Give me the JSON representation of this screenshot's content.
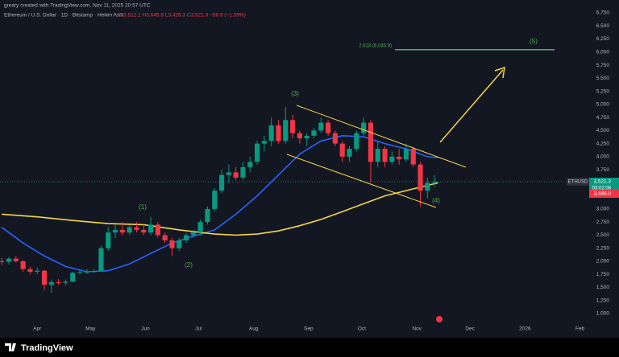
{
  "header": {
    "credit": "greary created with TradingView.com, Nov 11, 2025 20:57 UTC",
    "symbol_line": "Ethereum / U.S. Dollar · 1D · Bitstamp · Heikin Ashi",
    "ohlc_line": "O3,512.1 H3,646.8 L3,426.3 C3,521.3 −66.9 (−1.59%)"
  },
  "chart_data": {
    "type": "candlestick",
    "x": [
      -20,
      -16,
      -12,
      -8,
      -4,
      0,
      4,
      8,
      12,
      16,
      20,
      24,
      28,
      32,
      36,
      40,
      44,
      48,
      52,
      56,
      60,
      64,
      68,
      72,
      76,
      80,
      84,
      88,
      92,
      96,
      100,
      104,
      108,
      112,
      116,
      120,
      124,
      128,
      132,
      136,
      140,
      144,
      148,
      152,
      156,
      160,
      164,
      168,
      172,
      176,
      180,
      184,
      188,
      192,
      196,
      200,
      204,
      208,
      212,
      216,
      220,
      224
    ],
    "open": [
      2000,
      1990,
      2050,
      2000,
      1850,
      1800,
      1820,
      1550,
      1600,
      1590,
      1610,
      1780,
      1790,
      1800,
      1810,
      2250,
      2550,
      2600,
      2550,
      2650,
      2600,
      2550,
      2700,
      2500,
      2400,
      2250,
      2400,
      2500,
      2550,
      2750,
      3000,
      3350,
      3650,
      3700,
      3600,
      3800,
      3900,
      4250,
      4300,
      4600,
      4300,
      4700,
      4450,
      4350,
      4400,
      4500,
      4650,
      4450,
      4250,
      4000,
      4150,
      4450,
      4650,
      3900,
      4150,
      3900,
      4000,
      3950,
      4150,
      3850,
      3350,
      3512.1
    ],
    "high": [
      2060,
      2080,
      2100,
      2020,
      1900,
      1880,
      1830,
      1650,
      1660,
      1650,
      1800,
      1850,
      1850,
      1850,
      2300,
      2650,
      2700,
      2750,
      2700,
      2750,
      2700,
      2850,
      2750,
      2550,
      2450,
      2450,
      2550,
      2600,
      2800,
      3050,
      3400,
      3750,
      3850,
      3800,
      3900,
      4000,
      4300,
      4400,
      4750,
      4700,
      4950,
      4800,
      4500,
      4450,
      4550,
      4750,
      4700,
      4500,
      4300,
      4200,
      4500,
      4750,
      4700,
      4300,
      4200,
      4100,
      4150,
      4250,
      4200,
      3900,
      3600,
      3646.8
    ],
    "low": [
      1930,
      1940,
      1980,
      1800,
      1750,
      1750,
      1450,
      1400,
      1550,
      1540,
      1600,
      1750,
      1760,
      1780,
      1800,
      2200,
      2450,
      2500,
      2500,
      2550,
      2500,
      2500,
      2450,
      2350,
      2100,
      2200,
      2350,
      2450,
      2500,
      2700,
      2950,
      3300,
      3500,
      3550,
      3550,
      3700,
      3850,
      4100,
      4200,
      4250,
      4250,
      4350,
      4250,
      4200,
      4350,
      4450,
      4400,
      4200,
      3900,
      3900,
      4100,
      4400,
      3500,
      3800,
      3800,
      3850,
      3850,
      3900,
      3800,
      3050,
      3200,
      3426.3
    ],
    "close": [
      1990,
      2050,
      2000,
      1850,
      1800,
      1820,
      1550,
      1600,
      1590,
      1610,
      1780,
      1790,
      1800,
      1810,
      2250,
      2550,
      2600,
      2550,
      2650,
      2600,
      2550,
      2700,
      2500,
      2400,
      2250,
      2400,
      2500,
      2550,
      2750,
      3000,
      3350,
      3650,
      3700,
      3600,
      3800,
      3900,
      4250,
      4300,
      4600,
      4300,
      4700,
      4450,
      4350,
      4400,
      4500,
      4650,
      4450,
      4250,
      4000,
      4150,
      4450,
      4650,
      3900,
      4150,
      3900,
      4000,
      3950,
      4150,
      3850,
      3350,
      3500,
      3521.3
    ],
    "up_color": "#089981",
    "down_color": "#f23645",
    "lines": [
      {
        "x": [
          -20,
          -8,
          4,
          16,
          28,
          40,
          52,
          64,
          76,
          88,
          100,
          112,
          124,
          136,
          148,
          160,
          172,
          184,
          196,
          208,
          220,
          226
        ],
        "values": [
          2650,
          2350,
          2100,
          1900,
          1800,
          1820,
          1950,
          2150,
          2350,
          2480,
          2600,
          2900,
          3250,
          3650,
          4050,
          4300,
          4400,
          4380,
          4250,
          4150,
          4000,
          3980
        ],
        "color": "#2962ff"
      },
      {
        "x": [
          -20,
          0,
          20,
          40,
          60,
          80,
          100,
          112,
          124,
          136,
          148,
          160,
          172,
          184,
          196,
          208,
          220,
          226
        ],
        "values": [
          2900,
          2850,
          2780,
          2720,
          2700,
          2600,
          2520,
          2500,
          2520,
          2580,
          2680,
          2800,
          2950,
          3100,
          3250,
          3350,
          3450,
          3500
        ],
        "color": "#f5d547"
      }
    ],
    "xlim": [
      -21,
      328
    ],
    "ylim": [
      846,
      6996
    ],
    "xticks": [
      {
        "value": 0,
        "label": "Apr"
      },
      {
        "value": 30,
        "label": "May"
      },
      {
        "value": 61,
        "label": "Jun"
      },
      {
        "value": 91,
        "label": "Jul"
      },
      {
        "value": 122,
        "label": "Aug"
      },
      {
        "value": 153,
        "label": "Sep"
      },
      {
        "value": 183,
        "label": "Oct"
      },
      {
        "value": 214,
        "label": "Nov"
      },
      {
        "value": 244,
        "label": "Dec"
      },
      {
        "value": 275,
        "label": "2026"
      },
      {
        "value": 306,
        "label": "Feb"
      }
    ],
    "yticks": [
      {
        "value": 1000,
        "label": "1,000"
      },
      {
        "value": 1250,
        "label": "1,250"
      },
      {
        "value": 1500,
        "label": "1,500"
      },
      {
        "value": 1750,
        "label": "1,750"
      },
      {
        "value": 2000,
        "label": "2,000"
      },
      {
        "value": 2250,
        "label": "2,250"
      },
      {
        "value": 2500,
        "label": "2,500"
      },
      {
        "value": 2750,
        "label": "2,750"
      },
      {
        "value": 3000,
        "label": "3,000"
      },
      {
        "value": 3250,
        "label": "3,250"
      },
      {
        "value": 3500,
        "label": "3,500"
      },
      {
        "value": 3750,
        "label": "3,750"
      },
      {
        "value": 4000,
        "label": "4,000"
      },
      {
        "value": 4250,
        "label": "4,250"
      },
      {
        "value": 4500,
        "label": "4,500"
      },
      {
        "value": 4750,
        "label": "4,750"
      },
      {
        "value": 5000,
        "label": "5,000"
      },
      {
        "value": 5250,
        "label": "5,250"
      },
      {
        "value": 5500,
        "label": "5,500"
      },
      {
        "value": 5750,
        "label": "5,750"
      },
      {
        "value": 6000,
        "label": "6,000"
      },
      {
        "value": 6250,
        "label": "6,250"
      },
      {
        "value": 6500,
        "label": "6,500"
      },
      {
        "value": 6750,
        "label": "6,750"
      }
    ],
    "annotations": [
      "(1)",
      "(2)",
      "(3)",
      "(4)",
      "(5)"
    ],
    "fib": {
      "label": "2.618 (6,045.9)",
      "value": 6045.9,
      "color": "#4caf50"
    },
    "symbol_tag": "ETHUSD",
    "price_tags": [
      {
        "value": 3521.3,
        "label": "3,521.3",
        "color": "#089981"
      },
      {
        "value": 3446,
        "label": "3,446.0",
        "color": "#f23645"
      }
    ],
    "countdown": "03:02:08"
  },
  "footer": {
    "brand": "TradingView"
  }
}
